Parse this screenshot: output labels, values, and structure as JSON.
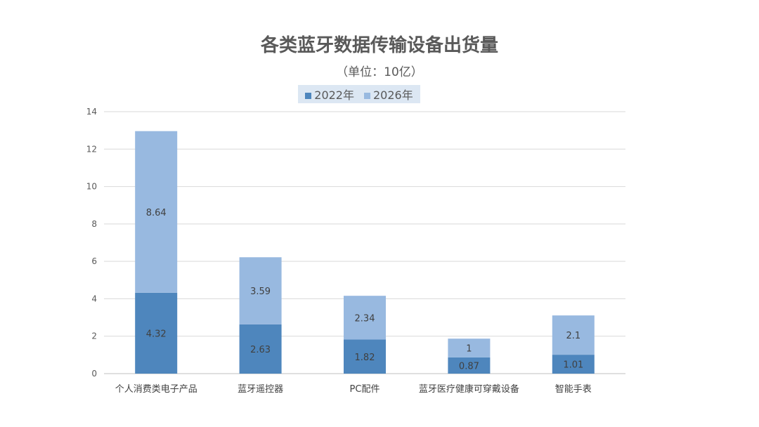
{
  "chart_data": {
    "type": "bar",
    "stacked": true,
    "title": "各类蓝牙数据传输设备出货量",
    "subtitle": "（单位：10亿）",
    "xlabel": "",
    "ylabel": "",
    "ylim": [
      0,
      14
    ],
    "yticks": [
      0,
      2,
      4,
      6,
      8,
      10,
      12,
      14
    ],
    "grid": true,
    "legend_position": "top",
    "categories": [
      "个人消费类电子产品",
      "蓝牙遥控器",
      "PC配件",
      "蓝牙医疗健康可穿戴设备",
      "智能手表"
    ],
    "series": [
      {
        "name": "2022年",
        "color": "#4e86bd",
        "values": [
          4.32,
          2.63,
          1.82,
          0.87,
          1.01
        ]
      },
      {
        "name": "2026年",
        "color": "#98b9e0",
        "values": [
          8.64,
          3.59,
          2.34,
          1,
          2.1
        ]
      }
    ]
  }
}
